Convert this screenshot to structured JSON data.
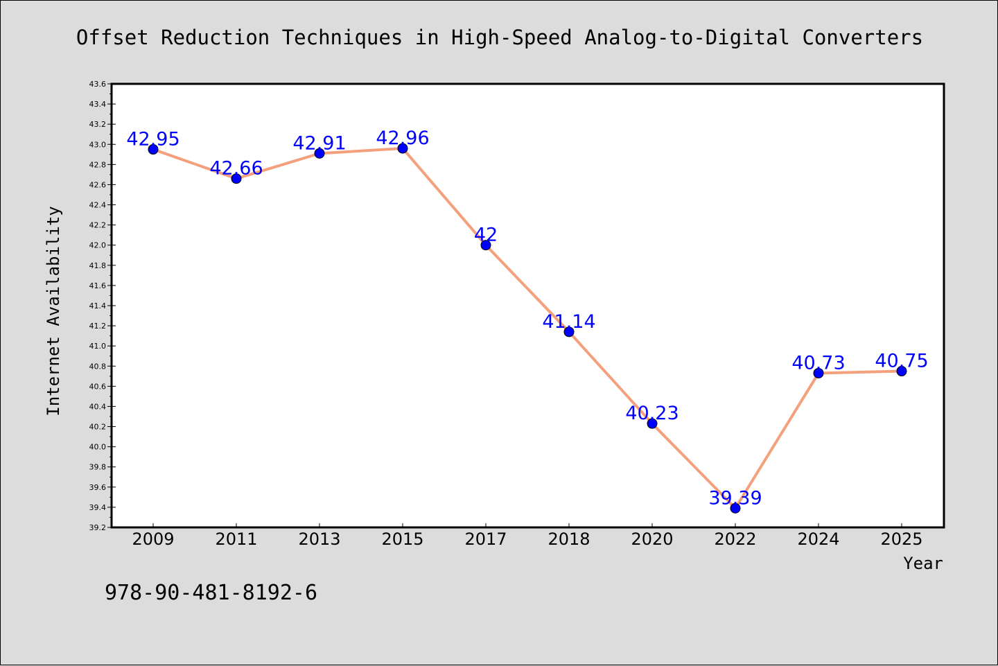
{
  "chart_data": {
    "type": "line",
    "title": "Offset Reduction Techniques in High-Speed Analog-to-Digital Converters",
    "xlabel": "Year",
    "ylabel": "Internet Availability",
    "categories": [
      "2009",
      "2011",
      "2013",
      "2015",
      "2017",
      "2018",
      "2020",
      "2022",
      "2024",
      "2025"
    ],
    "series": [
      {
        "values": [
          42.95,
          42.66,
          42.91,
          42.96,
          42,
          41.14,
          40.23,
          39.39,
          40.73,
          40.75
        ],
        "value_labels": [
          "42.95",
          "42.66",
          "42.91",
          "42.96",
          "42",
          "41.14",
          "40.23",
          "39.39",
          "40.73",
          "40.75"
        ],
        "line_color": "#f4a07c",
        "marker_color": "#0000ff",
        "label_color": "#0000ff"
      }
    ],
    "ylim": [
      39.2,
      43.6
    ],
    "ytick_step": 0.2,
    "grid": false,
    "legend": "none"
  },
  "annotation": {
    "isbn": "978-90-481-8192-6"
  },
  "colors": {
    "background": "#dcdcdc",
    "plot_background": "#ffffff",
    "axis": "#000000"
  }
}
